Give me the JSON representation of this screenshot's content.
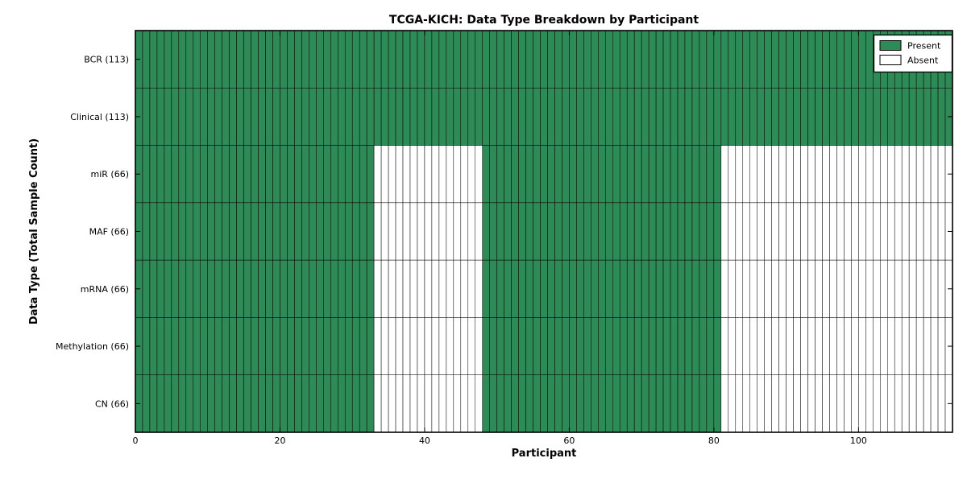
{
  "chart_data": {
    "type": "heatmap",
    "title": "TCGA-KICH: Data Type Breakdown by Participant",
    "xlabel": "Participant",
    "ylabel": "Data Type (Total Sample Count)",
    "n_participants": 113,
    "x_range": [
      0,
      113
    ],
    "x_ticks": [
      0,
      20,
      40,
      60,
      80,
      100
    ],
    "grid": "cell-edges-on",
    "legend_position": "upper-right",
    "legend": [
      {
        "label": "Present",
        "color": "#2E8B57"
      },
      {
        "label": "Absent",
        "color": "#FFFFFF"
      }
    ],
    "colors": {
      "present_fill": "#2E8B57",
      "absent_fill": "#FFFFFF",
      "cell_edge": "#000000",
      "axis": "#000000"
    },
    "rows": [
      {
        "label": "BCR (113)",
        "data_type": "BCR",
        "total_samples": 113,
        "present_segments": [
          [
            0,
            113
          ]
        ]
      },
      {
        "label": "Clinical (113)",
        "data_type": "Clinical",
        "total_samples": 113,
        "present_segments": [
          [
            0,
            113
          ]
        ]
      },
      {
        "label": "miR (66)",
        "data_type": "miR",
        "total_samples": 66,
        "present_segments": [
          [
            0,
            33
          ],
          [
            48,
            81
          ]
        ]
      },
      {
        "label": "MAF (66)",
        "data_type": "MAF",
        "total_samples": 66,
        "present_segments": [
          [
            0,
            33
          ],
          [
            48,
            81
          ]
        ]
      },
      {
        "label": "mRNA (66)",
        "data_type": "mRNA",
        "total_samples": 66,
        "present_segments": [
          [
            0,
            33
          ],
          [
            48,
            81
          ]
        ]
      },
      {
        "label": "Methylation (66)",
        "data_type": "Methylation",
        "total_samples": 66,
        "present_segments": [
          [
            0,
            33
          ],
          [
            48,
            81
          ]
        ]
      },
      {
        "label": "CN (66)",
        "data_type": "CN",
        "total_samples": 66,
        "present_segments": [
          [
            0,
            33
          ],
          [
            48,
            81
          ]
        ]
      }
    ]
  }
}
